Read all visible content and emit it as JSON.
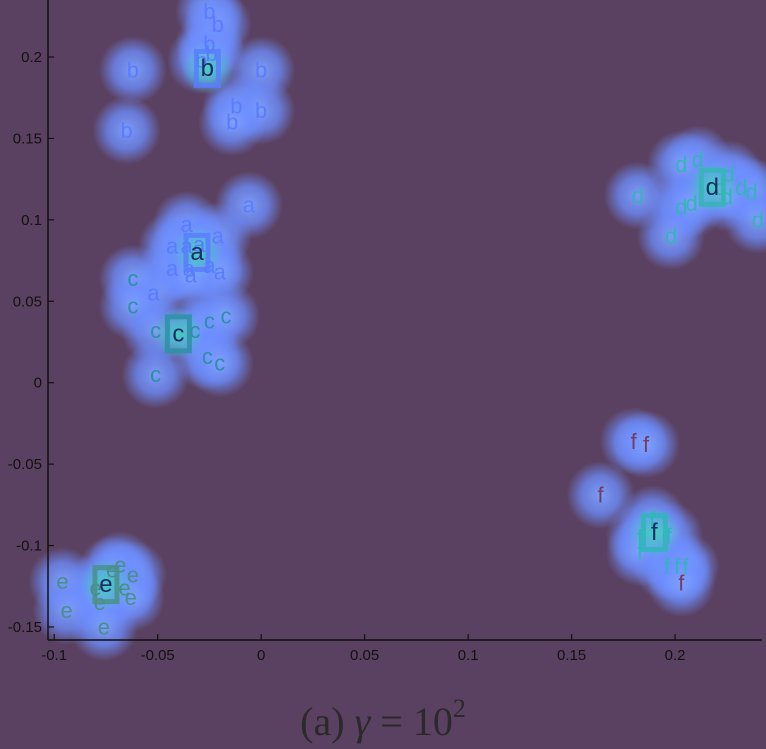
{
  "chart_data": {
    "type": "scatter",
    "caption": {
      "prefix": "(a) ",
      "symbol": "γ",
      "eq": " = 10",
      "exp": "2"
    },
    "xlim": [
      -0.103,
      0.242
    ],
    "ylim": [
      -0.158,
      0.235
    ],
    "xticks": [
      -0.1,
      -0.05,
      0,
      0.05,
      0.1,
      0.15,
      0.2
    ],
    "xtick_labels": [
      "-0.1",
      "-0.05",
      "0",
      "0.05",
      "0.1",
      "0.15",
      "0.2"
    ],
    "yticks": [
      -0.15,
      -0.1,
      -0.05,
      0,
      0.05,
      0.1,
      0.15,
      0.2
    ],
    "ytick_labels": [
      "-0.15",
      "-0.1",
      "-0.05",
      "0",
      "0.05",
      "0.1",
      "0.15",
      "0.2"
    ],
    "grid": false,
    "colors": {
      "background": "#5b4161",
      "axis": "#111111",
      "halo_inner": "#6a8bff",
      "halo_outer": "#8aa8ff"
    },
    "clusters": [
      {
        "label": "a",
        "color": "#5b7cff",
        "prototype": {
          "x": -0.031,
          "y": 0.08
        },
        "points": [
          [
            -0.036,
            0.097
          ],
          [
            -0.043,
            0.084
          ],
          [
            -0.021,
            0.09
          ],
          [
            -0.036,
            0.084
          ],
          [
            -0.03,
            0.085
          ],
          [
            -0.043,
            0.07
          ],
          [
            -0.035,
            0.07
          ],
          [
            -0.025,
            0.072
          ],
          [
            -0.02,
            0.068
          ],
          [
            -0.034,
            0.066
          ],
          [
            -0.052,
            0.055
          ],
          [
            -0.006,
            0.109
          ]
        ]
      },
      {
        "label": "b",
        "color": "#5b7cff",
        "prototype": {
          "x": -0.026,
          "y": 0.193
        },
        "points": [
          [
            -0.025,
            0.228
          ],
          [
            -0.021,
            0.22
          ],
          [
            -0.025,
            0.208
          ],
          [
            -0.024,
            0.202
          ],
          [
            -0.029,
            0.198
          ],
          [
            -0.062,
            0.192
          ],
          [
            0.0,
            0.192
          ],
          [
            -0.012,
            0.17
          ],
          [
            0.0,
            0.167
          ],
          [
            -0.014,
            0.16
          ],
          [
            -0.065,
            0.155
          ]
        ]
      },
      {
        "label": "c",
        "color": "#2e8fa6",
        "prototype": {
          "x": -0.04,
          "y": 0.03
        },
        "points": [
          [
            -0.062,
            0.064
          ],
          [
            -0.062,
            0.047
          ],
          [
            -0.051,
            0.032
          ],
          [
            -0.032,
            0.032
          ],
          [
            -0.025,
            0.038
          ],
          [
            -0.017,
            0.041
          ],
          [
            -0.026,
            0.016
          ],
          [
            -0.02,
            0.012
          ],
          [
            -0.051,
            0.005
          ]
        ]
      },
      {
        "label": "d",
        "color": "#35b5b5",
        "prototype": {
          "x": 0.218,
          "y": 0.12
        },
        "points": [
          [
            0.211,
            0.137
          ],
          [
            0.226,
            0.128
          ],
          [
            0.203,
            0.134
          ],
          [
            0.222,
            0.12
          ],
          [
            0.232,
            0.12
          ],
          [
            0.237,
            0.117
          ],
          [
            0.225,
            0.114
          ],
          [
            0.182,
            0.115
          ],
          [
            0.203,
            0.108
          ],
          [
            0.208,
            0.11
          ],
          [
            0.24,
            0.1
          ],
          [
            0.198,
            0.09
          ]
        ]
      },
      {
        "label": "e",
        "color": "#4a8f8a",
        "prototype": {
          "x": -0.075,
          "y": -0.124
        },
        "points": [
          [
            -0.068,
            -0.112
          ],
          [
            -0.062,
            -0.118
          ],
          [
            -0.072,
            -0.115
          ],
          [
            -0.08,
            -0.126
          ],
          [
            -0.066,
            -0.126
          ],
          [
            -0.063,
            -0.132
          ],
          [
            -0.096,
            -0.122
          ],
          [
            -0.078,
            -0.135
          ],
          [
            -0.094,
            -0.14
          ],
          [
            -0.076,
            -0.15
          ]
        ]
      },
      {
        "label": "f",
        "color": "#2fb6b8",
        "prototype": {
          "x": 0.19,
          "y": -0.092
        },
        "points": [
          [
            0.18,
            -0.036
          ],
          [
            0.186,
            -0.038
          ],
          [
            0.164,
            -0.069
          ],
          [
            0.189,
            -0.084
          ],
          [
            0.197,
            -0.094
          ],
          [
            0.183,
            -0.095
          ],
          [
            0.183,
            -0.104
          ],
          [
            0.196,
            -0.113
          ],
          [
            0.201,
            -0.113
          ],
          [
            0.205,
            -0.113
          ],
          [
            0.203,
            -0.123
          ]
        ]
      }
    ],
    "faded_points": [
      {
        "label": "f",
        "x": 0.18,
        "y": -0.036,
        "color": "#7a3a5e"
      },
      {
        "label": "f",
        "x": 0.186,
        "y": -0.038,
        "color": "#7a3a5e"
      },
      {
        "label": "f",
        "x": 0.164,
        "y": -0.069,
        "color": "#7a3a5e"
      },
      {
        "label": "f",
        "x": 0.203,
        "y": -0.123,
        "color": "#7a3a5e"
      }
    ]
  }
}
